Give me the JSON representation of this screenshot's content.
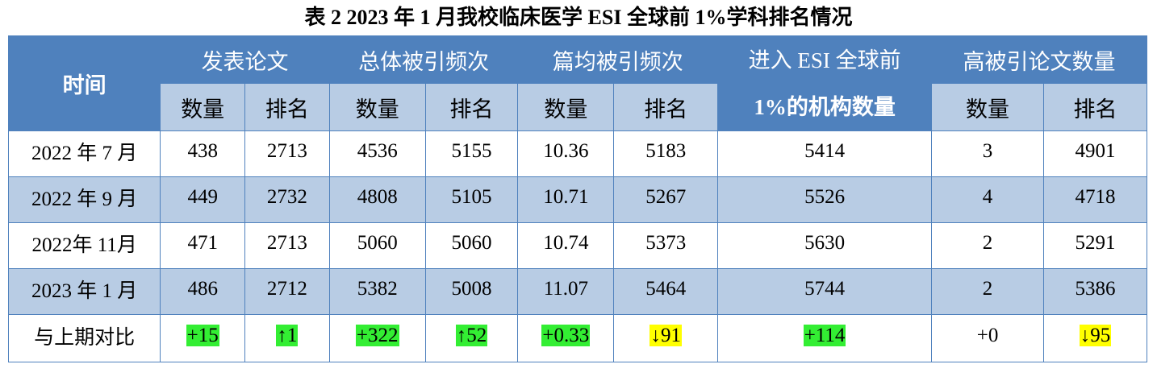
{
  "title": "表 2 2023 年 1 月我校临床医学 ESI 全球前 1%学科排名情况",
  "header": {
    "time": "时间",
    "papers": "发表论文",
    "citations": "总体被引频次",
    "avg_citations": "篇均被引频次",
    "esi_line1": "进入 ESI 全球前",
    "esi_line2": "1%的机构数量",
    "highly_cited": "高被引论文数量",
    "count": "数量",
    "rank": "排名"
  },
  "rows": [
    {
      "time": "2022 年 7 月",
      "papers_count": "438",
      "papers_rank": "2713",
      "cit_count": "4536",
      "cit_rank": "5155",
      "avg_count": "10.36",
      "avg_rank": "5183",
      "esi": "5414",
      "hc_count": "3",
      "hc_rank": "4901"
    },
    {
      "time": "2022 年 9 月",
      "papers_count": "449",
      "papers_rank": "2732",
      "cit_count": "4808",
      "cit_rank": "5105",
      "avg_count": "10.71",
      "avg_rank": "5267",
      "esi": "5526",
      "hc_count": "4",
      "hc_rank": "4718"
    },
    {
      "time": "2022年 11月",
      "papers_count": "471",
      "papers_rank": "2713",
      "cit_count": "5060",
      "cit_rank": "5060",
      "avg_count": "10.74",
      "avg_rank": "5373",
      "esi": "5630",
      "hc_count": "2",
      "hc_rank": "5291"
    },
    {
      "time": "2023 年 1 月",
      "papers_count": "486",
      "papers_rank": "2712",
      "cit_count": "5382",
      "cit_rank": "5008",
      "avg_count": "11.07",
      "avg_rank": "5464",
      "esi": "5744",
      "hc_count": "2",
      "hc_rank": "5386"
    }
  ],
  "comparison": {
    "label": "与上期对比",
    "papers_count": "+15",
    "papers_rank": "↑1",
    "cit_count": "+322",
    "cit_rank": "↑52",
    "avg_count": "+0.33",
    "avg_rank": "↓91",
    "esi": "+114",
    "hc_count": "+0",
    "hc_rank": "↓95"
  },
  "colors": {
    "header_blue": "#4f81bd",
    "light_blue": "#b8cce4",
    "increase_highlight": "#33ee33",
    "decrease_highlight": "#ffff00"
  }
}
